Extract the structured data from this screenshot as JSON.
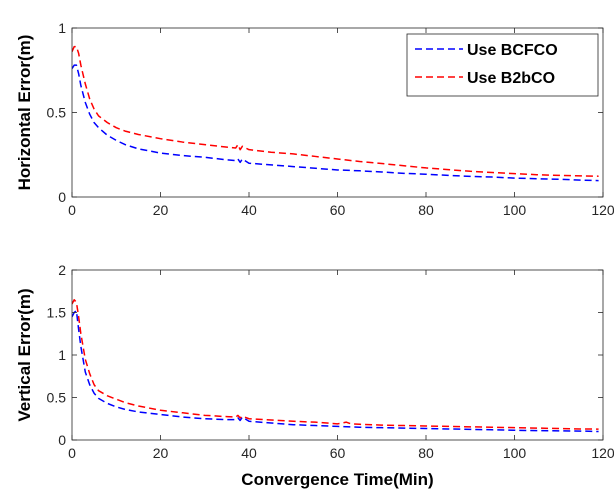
{
  "chart_data": [
    {
      "type": "line",
      "ylabel": "Horizontal Error(m)",
      "xlabel": "",
      "xlim": [
        0,
        120
      ],
      "ylim": [
        0,
        1
      ],
      "xticks": [
        "0",
        "20",
        "40",
        "60",
        "80",
        "100",
        "120"
      ],
      "yticks": [
        "0",
        "0.5",
        "1"
      ],
      "grid": false,
      "legend": "top-right",
      "series": [
        {
          "name": "Use BCFCO",
          "color": "#0000ff",
          "style": "dashed",
          "x": [
            0,
            0.5,
            1,
            1.5,
            2,
            3,
            4,
            5,
            6,
            8,
            10,
            12,
            15,
            20,
            25,
            30,
            35,
            37,
            37.5,
            38,
            38.5,
            40,
            45,
            50,
            55,
            60,
            65,
            70,
            75,
            80,
            85,
            90,
            95,
            100,
            105,
            110,
            115,
            119
          ],
          "y": [
            0.76,
            0.78,
            0.78,
            0.73,
            0.66,
            0.56,
            0.49,
            0.44,
            0.41,
            0.365,
            0.335,
            0.31,
            0.285,
            0.26,
            0.245,
            0.235,
            0.22,
            0.215,
            0.225,
            0.205,
            0.225,
            0.2,
            0.19,
            0.18,
            0.17,
            0.16,
            0.155,
            0.148,
            0.14,
            0.135,
            0.128,
            0.122,
            0.118,
            0.112,
            0.108,
            0.105,
            0.1,
            0.097
          ]
        },
        {
          "name": "Use B2bCO",
          "color": "#ff0000",
          "style": "dashed",
          "x": [
            0,
            0.5,
            1,
            1.5,
            2,
            3,
            4,
            5,
            6,
            8,
            10,
            12,
            15,
            20,
            25,
            30,
            35,
            37,
            37.5,
            38,
            38.5,
            40,
            45,
            50,
            55,
            60,
            65,
            70,
            75,
            80,
            85,
            90,
            95,
            100,
            105,
            110,
            115,
            119
          ],
          "y": [
            0.86,
            0.89,
            0.89,
            0.85,
            0.78,
            0.67,
            0.58,
            0.52,
            0.48,
            0.44,
            0.41,
            0.39,
            0.37,
            0.345,
            0.325,
            0.31,
            0.295,
            0.29,
            0.31,
            0.28,
            0.3,
            0.28,
            0.265,
            0.255,
            0.24,
            0.225,
            0.21,
            0.198,
            0.185,
            0.172,
            0.162,
            0.152,
            0.145,
            0.138,
            0.132,
            0.128,
            0.125,
            0.123
          ]
        }
      ]
    },
    {
      "type": "line",
      "ylabel": "Vertical Error(m)",
      "xlabel": "Convergence Time(Min)",
      "xlim": [
        0,
        120
      ],
      "ylim": [
        0,
        2
      ],
      "xticks": [
        "0",
        "20",
        "40",
        "60",
        "80",
        "100",
        "120"
      ],
      "yticks": [
        "0",
        "0.5",
        "1",
        "1.5",
        "2"
      ],
      "grid": false,
      "series": [
        {
          "name": "Use BCFCO",
          "color": "#0000ff",
          "style": "dashed",
          "x": [
            0,
            0.5,
            1,
            1.5,
            2,
            3,
            4,
            5,
            6,
            8,
            10,
            12,
            15,
            20,
            25,
            30,
            35,
            37,
            37.5,
            38,
            38.5,
            40,
            45,
            50,
            55,
            60,
            65,
            70,
            75,
            80,
            85,
            90,
            95,
            100,
            105,
            110,
            115,
            119
          ],
          "y": [
            1.45,
            1.5,
            1.52,
            1.3,
            1.1,
            0.8,
            0.65,
            0.55,
            0.49,
            0.43,
            0.39,
            0.36,
            0.33,
            0.3,
            0.27,
            0.25,
            0.24,
            0.24,
            0.26,
            0.23,
            0.27,
            0.22,
            0.2,
            0.18,
            0.17,
            0.16,
            0.15,
            0.145,
            0.14,
            0.135,
            0.13,
            0.125,
            0.12,
            0.115,
            0.11,
            0.108,
            0.105,
            0.1
          ]
        },
        {
          "name": "Use B2bCO",
          "color": "#ff0000",
          "style": "dashed",
          "x": [
            0,
            0.5,
            1,
            1.5,
            2,
            3,
            4,
            5,
            6,
            8,
            10,
            12,
            15,
            20,
            25,
            30,
            35,
            37,
            37.5,
            38,
            38.5,
            40,
            45,
            50,
            55,
            60,
            61,
            62,
            63,
            65,
            70,
            75,
            80,
            85,
            90,
            95,
            100,
            105,
            110,
            115,
            119
          ],
          "y": [
            1.6,
            1.65,
            1.62,
            1.45,
            1.25,
            0.95,
            0.78,
            0.65,
            0.58,
            0.52,
            0.48,
            0.44,
            0.4,
            0.35,
            0.32,
            0.29,
            0.275,
            0.27,
            0.29,
            0.26,
            0.28,
            0.25,
            0.235,
            0.22,
            0.21,
            0.19,
            0.2,
            0.21,
            0.19,
            0.185,
            0.175,
            0.17,
            0.165,
            0.16,
            0.155,
            0.15,
            0.145,
            0.14,
            0.135,
            0.13,
            0.128
          ]
        }
      ]
    }
  ]
}
